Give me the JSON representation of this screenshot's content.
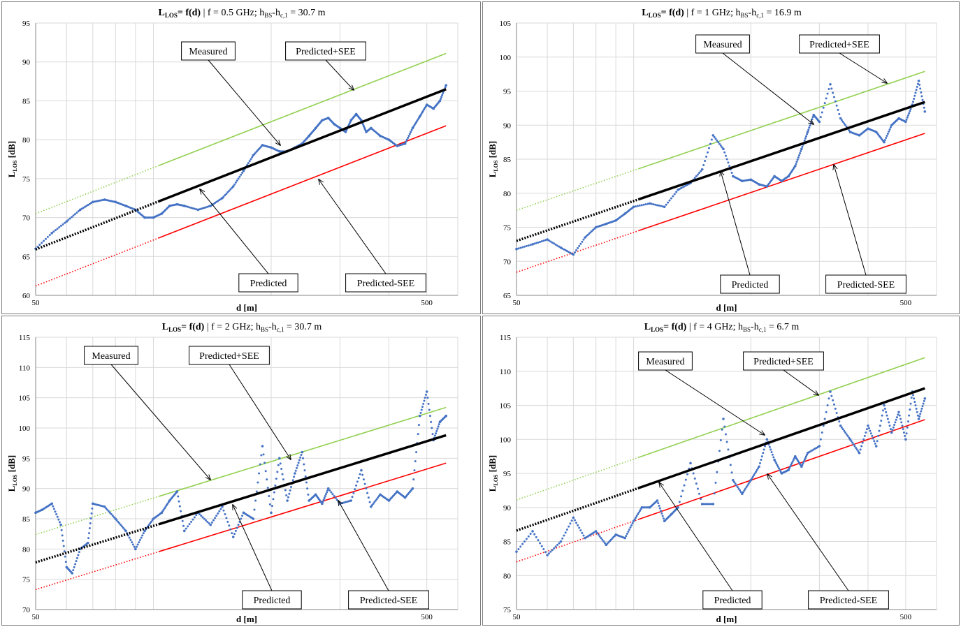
{
  "colors": {
    "measured": "#4472c4",
    "predicted": "#000000",
    "predicted_plus": "#92d050",
    "predicted_minus": "#ff0000",
    "grid": "#d9d9d9",
    "axis": "#868686"
  },
  "chart_data": [
    {
      "type": "scatter",
      "title_main": "L",
      "title_sub": "LOS",
      "title_func": "= f(d)",
      "title_params": " | f = 0.5 GHz; h",
      "title_bs": "BS",
      "title_dash": "-h",
      "title_c1": "c,1",
      "title_value": " = 30.7 m",
      "xlabel": "d [m]",
      "ylabel_main": "L",
      "ylabel_sub": "LOS",
      "ylabel_unit": " [dB]",
      "x_scale": "log",
      "xlim": [
        50,
        600
      ],
      "x_ticks": [
        50,
        500
      ],
      "ylim": [
        60,
        95
      ],
      "y_ticks": [
        60,
        65,
        70,
        75,
        80,
        85,
        90,
        95
      ],
      "grid": true,
      "legend": "callout labels",
      "callouts": {
        "measured": "Measured",
        "predicted_plus": "Predicted+SEE",
        "predicted": "Predicted",
        "predicted_minus": "Predicted-SEE"
      },
      "series": [
        {
          "name": "Predicted",
          "x": [
            50,
            560
          ],
          "y": [
            65.9,
            86.5
          ]
        },
        {
          "name": "Predicted+SEE",
          "x": [
            50,
            560
          ],
          "y": [
            70.5,
            91.1
          ]
        },
        {
          "name": "Predicted-SEE",
          "x": [
            50,
            560
          ],
          "y": [
            61.2,
            81.8
          ]
        },
        {
          "name": "Measured",
          "x": [
            50,
            55,
            60,
            65,
            70,
            75,
            80,
            85,
            90,
            95,
            100,
            105,
            110,
            115,
            120,
            130,
            140,
            150,
            160,
            170,
            180,
            190,
            200,
            210,
            220,
            230,
            240,
            250,
            260,
            270,
            280,
            290,
            300,
            310,
            320,
            330,
            340,
            350,
            360,
            380,
            400,
            420,
            440,
            460,
            480,
            500,
            520,
            540,
            560
          ],
          "y": [
            66.0,
            68.0,
            69.5,
            71.0,
            72.0,
            72.3,
            72.0,
            71.5,
            71.0,
            70.0,
            70.0,
            70.5,
            71.5,
            71.7,
            71.5,
            71.0,
            71.5,
            72.5,
            74.0,
            76.0,
            78.0,
            79.3,
            79.0,
            78.5,
            78.5,
            79.0,
            79.5,
            80.5,
            81.5,
            82.5,
            82.8,
            82.0,
            81.5,
            81.0,
            82.5,
            83.3,
            82.5,
            81.0,
            81.5,
            80.5,
            80.0,
            79.2,
            79.5,
            81.5,
            83.0,
            84.5,
            84.0,
            85.0,
            87.0
          ]
        }
      ]
    },
    {
      "type": "scatter",
      "title_main": "L",
      "title_sub": "LOS",
      "title_func": "= f(d)",
      "title_params": " | f = 1 GHz; h",
      "title_bs": "BS",
      "title_dash": "-h",
      "title_c1": "c,1",
      "title_value": " = 16.9 m",
      "xlabel": "d [m]",
      "ylabel_main": "L",
      "ylabel_sub": "LOS",
      "ylabel_unit": " [dB]",
      "x_scale": "log",
      "xlim": [
        50,
        600
      ],
      "x_ticks": [
        50,
        500
      ],
      "ylim": [
        65,
        105
      ],
      "y_ticks": [
        65,
        70,
        75,
        80,
        85,
        90,
        95,
        100,
        105
      ],
      "grid": true,
      "legend": "callout labels",
      "callouts": {
        "measured": "Measured",
        "predicted_plus": "Predicted+SEE",
        "predicted": "Predicted",
        "predicted_minus": "Predicted-SEE"
      },
      "series": [
        {
          "name": "Predicted",
          "x": [
            50,
            560
          ],
          "y": [
            73.0,
            93.4
          ]
        },
        {
          "name": "Predicted+SEE",
          "x": [
            50,
            560
          ],
          "y": [
            77.5,
            97.9
          ]
        },
        {
          "name": "Predicted-SEE",
          "x": [
            50,
            560
          ],
          "y": [
            68.4,
            88.8
          ]
        },
        {
          "name": "Measured",
          "x": [
            50,
            55,
            60,
            65,
            70,
            75,
            80,
            85,
            90,
            95,
            100,
            110,
            120,
            130,
            140,
            150,
            160,
            170,
            180,
            190,
            200,
            210,
            220,
            230,
            240,
            250,
            260,
            270,
            280,
            290,
            300,
            320,
            340,
            360,
            380,
            400,
            420,
            440,
            460,
            480,
            500,
            520,
            540,
            560
          ],
          "y": [
            71.8,
            72.5,
            73.2,
            72.0,
            71.0,
            73.5,
            75.0,
            75.5,
            76.0,
            77.0,
            78.0,
            78.5,
            78.0,
            80.5,
            81.5,
            83.5,
            88.5,
            86.5,
            82.5,
            81.8,
            82.0,
            81.3,
            81.0,
            82.5,
            81.8,
            82.5,
            84.0,
            86.5,
            89.0,
            91.5,
            90.5,
            96.0,
            91.0,
            89.0,
            88.5,
            89.5,
            89.0,
            87.5,
            90.0,
            91.0,
            90.5,
            93.0,
            96.5,
            92.0
          ]
        }
      ]
    },
    {
      "type": "scatter",
      "title_main": "L",
      "title_sub": "LOS",
      "title_func": "= f(d)",
      "title_params": " | f = 2 GHz; h",
      "title_bs": "BS",
      "title_dash": "-h",
      "title_c1": "c,1",
      "title_value": " = 30.7 m",
      "xlabel": "d [m]",
      "ylabel_main": "L",
      "ylabel_sub": "LOS",
      "ylabel_unit": " [dB]",
      "x_scale": "log",
      "xlim": [
        50,
        600
      ],
      "x_ticks": [
        50,
        500
      ],
      "ylim": [
        70,
        115
      ],
      "y_ticks": [
        70,
        75,
        80,
        85,
        90,
        95,
        100,
        105,
        110,
        115
      ],
      "grid": true,
      "legend": "callout labels",
      "callouts": {
        "measured": "Measured",
        "predicted_plus": "Predicted+SEE",
        "predicted": "Predicted",
        "predicted_minus": "Predicted-SEE"
      },
      "series": [
        {
          "name": "Predicted",
          "x": [
            50,
            560
          ],
          "y": [
            77.8,
            98.8
          ]
        },
        {
          "name": "Predicted+SEE",
          "x": [
            50,
            560
          ],
          "y": [
            82.4,
            103.4
          ]
        },
        {
          "name": "Predicted-SEE",
          "x": [
            50,
            560
          ],
          "y": [
            73.3,
            94.2
          ]
        },
        {
          "name": "Measured",
          "x": [
            50,
            52,
            55,
            58,
            60,
            62,
            65,
            68,
            70,
            75,
            80,
            85,
            90,
            95,
            100,
            105,
            110,
            115,
            120,
            130,
            140,
            150,
            160,
            170,
            180,
            190,
            200,
            210,
            220,
            230,
            240,
            250,
            260,
            270,
            280,
            300,
            320,
            340,
            360,
            380,
            400,
            420,
            440,
            460,
            480,
            500,
            520,
            540,
            560
          ],
          "y": [
            86.0,
            86.5,
            87.5,
            84.0,
            77.0,
            76.0,
            80.0,
            81.0,
            87.5,
            87.0,
            85.0,
            83.0,
            80.0,
            83.0,
            85.0,
            86.0,
            88.0,
            89.5,
            83.0,
            86.0,
            84.0,
            87.0,
            82.0,
            86.0,
            85.0,
            97.0,
            86.0,
            95.0,
            88.0,
            92.5,
            96.0,
            88.0,
            89.0,
            87.5,
            90.0,
            87.5,
            88.0,
            93.0,
            87.0,
            89.0,
            88.0,
            89.5,
            88.5,
            90.0,
            102.0,
            106.0,
            98.0,
            101.0,
            102.0
          ]
        }
      ]
    },
    {
      "type": "scatter",
      "title_main": "L",
      "title_sub": "LOS",
      "title_func": "= f(d)",
      "title_params": " | f = 4 GHz; h",
      "title_bs": "BS",
      "title_dash": "-h",
      "title_c1": "c,1",
      "title_value": " = 6.7 m",
      "xlabel": "d [m]",
      "ylabel_main": "L",
      "ylabel_sub": "LOS",
      "ylabel_unit": " [dB]",
      "x_scale": "log",
      "xlim": [
        50,
        600
      ],
      "x_ticks": [
        50,
        500
      ],
      "ylim": [
        75,
        115
      ],
      "y_ticks": [
        75,
        80,
        85,
        90,
        95,
        100,
        105,
        110,
        115
      ],
      "grid": true,
      "legend": "callout labels",
      "callouts": {
        "measured": "Measured",
        "predicted_plus": "Predicted+SEE",
        "predicted": "Predicted",
        "predicted_minus": "Predicted-SEE"
      },
      "series": [
        {
          "name": "Predicted",
          "x": [
            50,
            560
          ],
          "y": [
            86.6,
            107.5
          ]
        },
        {
          "name": "Predicted+SEE",
          "x": [
            50,
            560
          ],
          "y": [
            91.1,
            112.0
          ]
        },
        {
          "name": "Predicted-SEE",
          "x": [
            50,
            560
          ],
          "y": [
            82.0,
            102.9
          ]
        },
        {
          "name": "Measured",
          "x": [
            50,
            55,
            60,
            65,
            70,
            75,
            80,
            85,
            90,
            95,
            100,
            105,
            110,
            115,
            120,
            125,
            130,
            140,
            150,
            160,
            170,
            180,
            190,
            200,
            210,
            220,
            230,
            240,
            250,
            260,
            270,
            280,
            300,
            320,
            340,
            360,
            380,
            400,
            420,
            440,
            460,
            480,
            500,
            520,
            540,
            560
          ],
          "y": [
            83.5,
            86.5,
            83.0,
            85.0,
            88.5,
            85.5,
            86.5,
            84.5,
            86.0,
            85.5,
            88.0,
            90.0,
            90.0,
            91.0,
            88.0,
            89.0,
            90.0,
            96.5,
            90.5,
            90.5,
            103.0,
            94.0,
            92.0,
            94.0,
            96.0,
            100.0,
            97.0,
            95.0,
            95.5,
            97.5,
            96.0,
            98.0,
            99.0,
            107.0,
            102.0,
            100.0,
            98.0,
            102.0,
            99.0,
            105.0,
            101.0,
            104.0,
            100.0,
            107.0,
            103.0,
            106.0
          ]
        }
      ]
    }
  ]
}
